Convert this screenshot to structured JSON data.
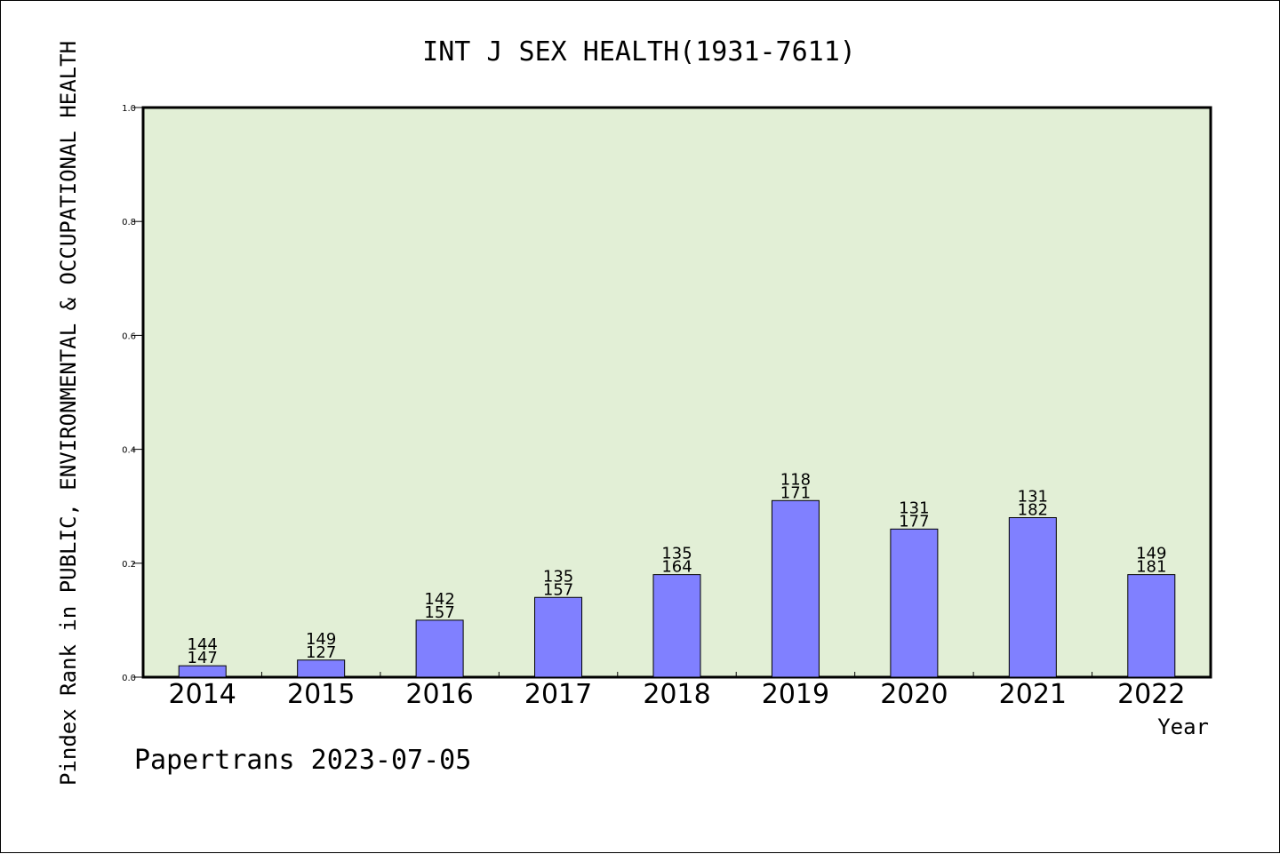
{
  "chart_data": {
    "type": "bar",
    "title": "INT J SEX HEALTH(1931-7611)",
    "ylabel": "Pindex Rank in PUBLIC, ENVIRONMENTAL & OCCUPATIONAL HEALTH",
    "xlabel": "Year",
    "ylim": [
      0,
      1.0
    ],
    "yticks": [
      "0.0",
      "0.2",
      "0.4",
      "0.6",
      "0.8",
      "1.0"
    ],
    "ytick_values": [
      0,
      0.2,
      0.4,
      0.6,
      0.8,
      1.0
    ],
    "grid": false,
    "categories": [
      "2014",
      "2015",
      "2016",
      "2017",
      "2018",
      "2019",
      "2020",
      "2021",
      "2022"
    ],
    "values": [
      0.02,
      0.03,
      0.1,
      0.14,
      0.18,
      0.31,
      0.26,
      0.28,
      0.18
    ],
    "labels_top": [
      "144",
      "149",
      "142",
      "135",
      "135",
      "118",
      "131",
      "131",
      "149"
    ],
    "labels_bottom": [
      "147",
      "127",
      "157",
      "157",
      "164",
      "171",
      "177",
      "182",
      "181"
    ]
  },
  "footer": "Papertrans 2023-07-05",
  "colors": {
    "plot_background": "#e2efd6",
    "bar_fill": "#8080ff",
    "bar_stroke": "#000000",
    "axes": "#000000"
  }
}
